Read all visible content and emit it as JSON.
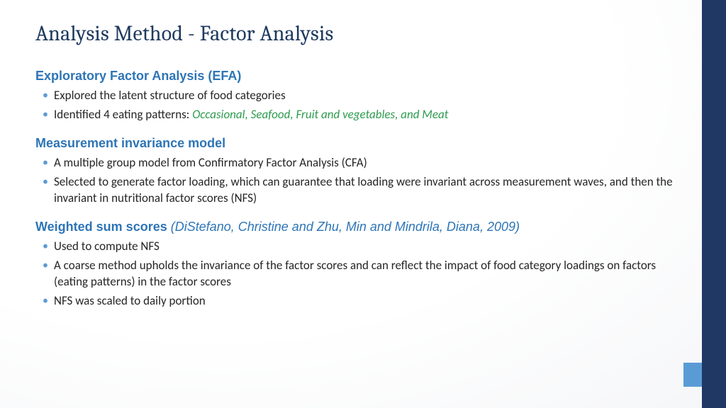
{
  "colors": {
    "title": "#1f3a5f",
    "heading": "#2e75b6",
    "bullet_marker": "#5b9bd5",
    "body_text": "#262626",
    "accent_green": "#2e9b4f",
    "bar_dark": "#1f3864",
    "bar_light": "#5b9bd5",
    "background": "#ffffff"
  },
  "typography": {
    "title_font": "Cambria, Georgia, serif",
    "title_size_pt": 24,
    "heading_size_pt": 14,
    "body_size_pt": 13,
    "body_font": "Calibri, Segoe UI, Arial"
  },
  "layout": {
    "slide_width": 1024,
    "slide_height": 576,
    "right_bar_dark_width": 34,
    "right_bar_light_width": 60,
    "right_bar_light_height": 34,
    "right_bar_light_bottom": 30
  },
  "title": "Analysis Method - Factor Analysis",
  "sections": [
    {
      "heading": "Exploratory Factor Analysis (EFA)",
      "citation": "",
      "bullets": [
        {
          "pre": "Explored the latent structure of food categories",
          "green": "",
          "post": ""
        },
        {
          "pre": "Identified 4 eating patterns: ",
          "green": "Occasional, Seafood, Fruit and vegetables, and Meat",
          "post": ""
        }
      ]
    },
    {
      "heading": "Measurement invariance model",
      "citation": "",
      "bullets": [
        {
          "pre": "A multiple group model from Confirmatory Factor Analysis (CFA)",
          "green": "",
          "post": ""
        },
        {
          "pre": "Selected to generate factor loading, which can guarantee that loading were invariant across measurement waves, and then the invariant in nutritional factor scores (NFS)",
          "green": "",
          "post": ""
        }
      ]
    },
    {
      "heading": "Weighted sum scores ",
      "citation": "(DiStefano, Christine and Zhu, Min and Mindrila, Diana, 2009)",
      "bullets": [
        {
          "pre": "Used to compute NFS",
          "green": "",
          "post": ""
        },
        {
          "pre": "A coarse method upholds the invariance of the factor scores and can reflect the impact of food category loadings on factors (eating patterns) in the factor scores",
          "green": "",
          "post": ""
        },
        {
          "pre": "NFS was scaled to daily portion",
          "green": "",
          "post": ""
        }
      ]
    }
  ]
}
